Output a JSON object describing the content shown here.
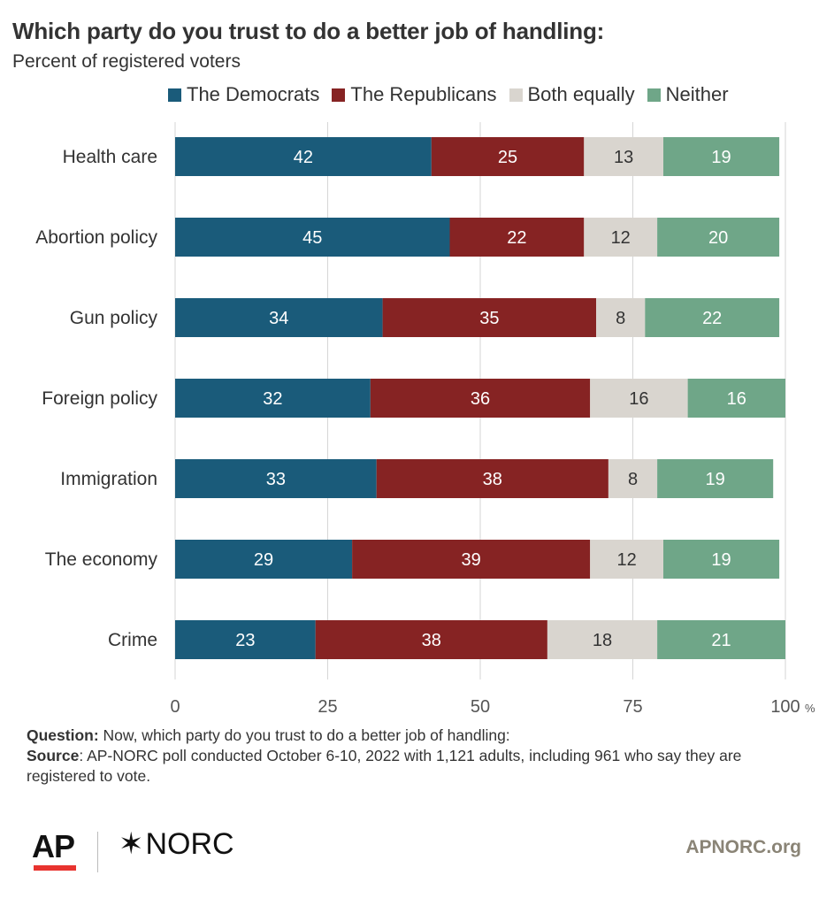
{
  "header": {
    "title": "Which party do you trust to do a better job of handling:",
    "subtitle": "Percent of registered voters"
  },
  "colors": {
    "democrats": "#1a5b7a",
    "republicans": "#862323",
    "both": "#d9d5cf",
    "neither": "#6fa688",
    "gridline": "#d6d6d6",
    "text": "#333333"
  },
  "chart_data": {
    "type": "bar",
    "orientation": "horizontal",
    "stacked": true,
    "categories": [
      "Health care",
      "Abortion policy",
      "Gun policy",
      "Foreign policy",
      "Immigration",
      "The economy",
      "Crime"
    ],
    "series": [
      {
        "name": "The Democrats",
        "values": [
          42,
          45,
          34,
          32,
          33,
          29,
          23
        ]
      },
      {
        "name": "The Republicans",
        "values": [
          25,
          22,
          35,
          36,
          38,
          39,
          38
        ]
      },
      {
        "name": "Both equally",
        "values": [
          13,
          12,
          8,
          16,
          8,
          12,
          18
        ]
      },
      {
        "name": "Neither",
        "values": [
          19,
          20,
          22,
          16,
          19,
          19,
          21
        ]
      }
    ],
    "xlim": [
      0,
      100
    ],
    "xticks": [
      "0",
      "25",
      "50",
      "75",
      "100"
    ],
    "x_unit": "%",
    "grid": true,
    "legend_position": "top"
  },
  "footer": {
    "question_label": "Question:",
    "question_text": " Now, which party do you trust to do a better job of handling:",
    "source_label": "Source",
    "source_text": ": AP-NORC poll conducted October 6-10, 2022 with 1,121 adults, including 961 who say they are registered to vote.",
    "ap_logo": "AP",
    "norc_logo": "NORC",
    "site": "APNORC.org"
  }
}
